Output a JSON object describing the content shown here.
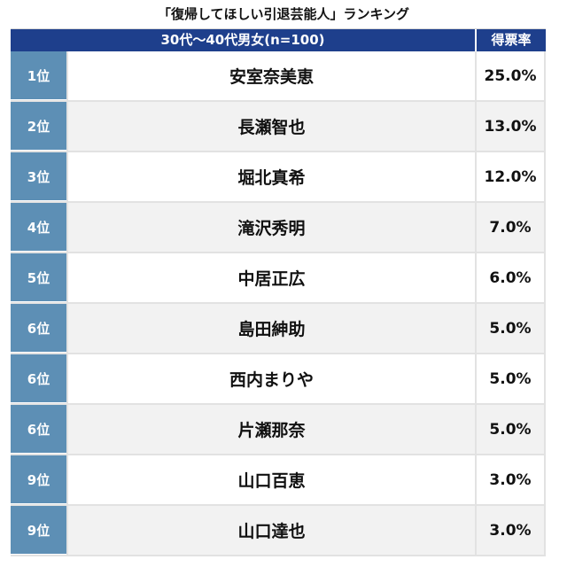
{
  "title": "「復帰してほしい引退芸能人」ランキング",
  "header": {
    "segment": "30代〜40代男女(n=100)",
    "rate_label": "得票率"
  },
  "rows": [
    {
      "rank": "1位",
      "name": "安室奈美恵",
      "rate": "25.0%"
    },
    {
      "rank": "2位",
      "name": "長瀬智也",
      "rate": "13.0%"
    },
    {
      "rank": "3位",
      "name": "堀北真希",
      "rate": "12.0%"
    },
    {
      "rank": "4位",
      "name": "滝沢秀明",
      "rate": "7.0%"
    },
    {
      "rank": "5位",
      "name": "中居正広",
      "rate": "6.0%"
    },
    {
      "rank": "6位",
      "name": "島田紳助",
      "rate": "5.0%"
    },
    {
      "rank": "6位",
      "name": "西内まりや",
      "rate": "5.0%"
    },
    {
      "rank": "6位",
      "name": "片瀬那奈",
      "rate": "5.0%"
    },
    {
      "rank": "9位",
      "name": "山口百恵",
      "rate": "3.0%"
    },
    {
      "rank": "9位",
      "name": "山口達也",
      "rate": "3.0%"
    }
  ]
}
